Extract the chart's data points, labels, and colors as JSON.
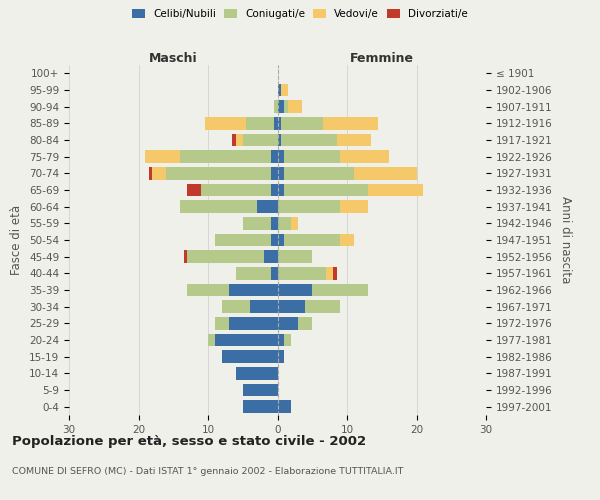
{
  "age_groups": [
    "0-4",
    "5-9",
    "10-14",
    "15-19",
    "20-24",
    "25-29",
    "30-34",
    "35-39",
    "40-44",
    "45-49",
    "50-54",
    "55-59",
    "60-64",
    "65-69",
    "70-74",
    "75-79",
    "80-84",
    "85-89",
    "90-94",
    "95-99",
    "100+"
  ],
  "birth_years": [
    "1997-2001",
    "1992-1996",
    "1987-1991",
    "1982-1986",
    "1977-1981",
    "1972-1976",
    "1967-1971",
    "1962-1966",
    "1957-1961",
    "1952-1956",
    "1947-1951",
    "1942-1946",
    "1937-1941",
    "1932-1936",
    "1927-1931",
    "1922-1926",
    "1917-1921",
    "1912-1916",
    "1907-1911",
    "1902-1906",
    "≤ 1901"
  ],
  "colors": {
    "celibe": "#3b6ea5",
    "coniugato": "#b5c98a",
    "vedovo": "#f5c96a",
    "divorziato": "#c0392b"
  },
  "male": {
    "celibe": [
      5,
      5,
      6,
      8,
      9,
      7,
      4,
      7,
      1,
      2,
      1,
      1,
      3,
      1,
      1,
      1,
      0,
      0.5,
      0,
      0,
      0
    ],
    "coniugato": [
      0,
      0,
      0,
      0,
      1,
      2,
      4,
      6,
      5,
      11,
      8,
      4,
      11,
      10,
      15,
      13,
      5,
      4,
      0.5,
      0,
      0
    ],
    "vedovo": [
      0,
      0,
      0,
      0,
      0,
      0,
      0,
      0,
      0,
      0,
      0,
      0,
      0,
      0,
      2,
      5,
      1,
      6,
      0,
      0,
      0
    ],
    "divorziato": [
      0,
      0,
      0,
      0,
      0,
      0,
      0,
      0,
      0,
      0.5,
      0,
      0,
      0,
      2,
      0.5,
      0,
      0.5,
      0,
      0,
      0,
      0
    ]
  },
  "female": {
    "nubile": [
      2,
      0,
      0,
      1,
      1,
      3,
      4,
      5,
      0,
      0,
      1,
      0,
      0,
      1,
      1,
      1,
      0.5,
      0.5,
      1,
      0.5,
      0
    ],
    "coniugata": [
      0,
      0,
      0,
      0,
      1,
      2,
      5,
      8,
      7,
      5,
      8,
      2,
      9,
      12,
      10,
      8,
      8,
      6,
      0.5,
      0,
      0
    ],
    "vedova": [
      0,
      0,
      0,
      0,
      0,
      0,
      0,
      0,
      1,
      0,
      2,
      1,
      4,
      8,
      9,
      7,
      5,
      8,
      2,
      1,
      0
    ],
    "divorziata": [
      0,
      0,
      0,
      0,
      0,
      0,
      0,
      0,
      0.5,
      0,
      0,
      0,
      0,
      0,
      0,
      0,
      0,
      0,
      0,
      0,
      0
    ]
  },
  "xlim": 30,
  "title": "Popolazione per età, sesso e stato civile - 2002",
  "subtitle": "COMUNE DI SEFRO (MC) - Dati ISTAT 1° gennaio 2002 - Elaborazione TUTTITALIA.IT",
  "ylabel_left": "Fasce di età",
  "ylabel_right": "Anni di nascita",
  "xlabel_left": "Maschi",
  "xlabel_right": "Femmine",
  "bg_color": "#f0f0eb",
  "grid_color": "#cccccc"
}
